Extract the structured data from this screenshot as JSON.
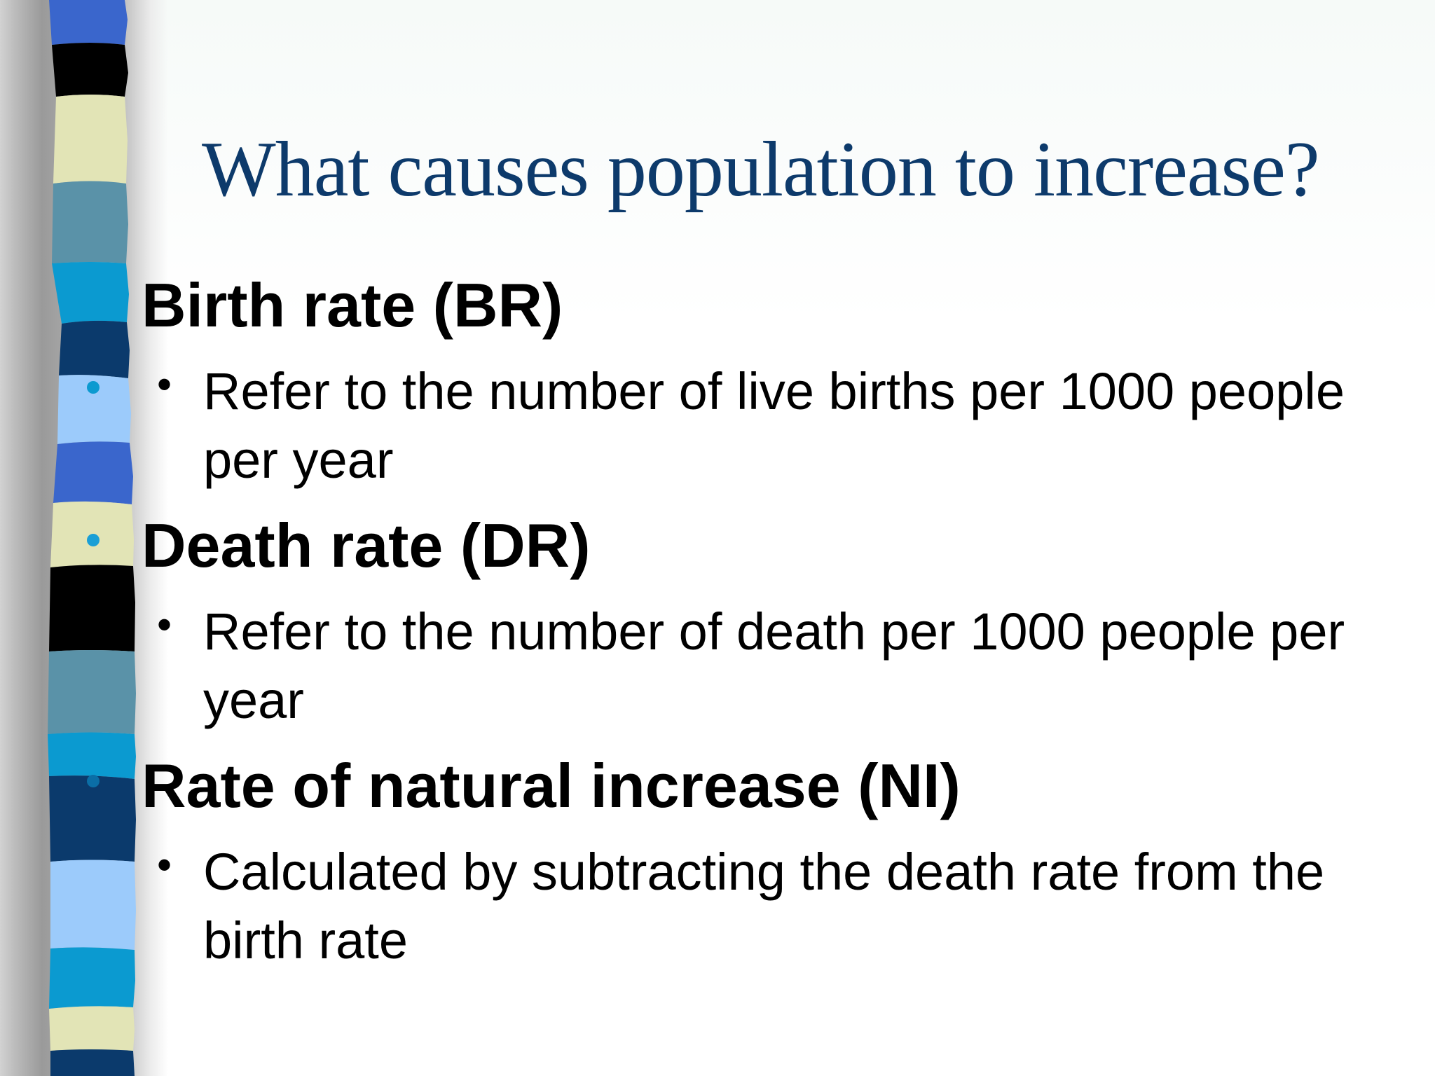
{
  "slide": {
    "title": "What causes population to increase?",
    "items": [
      {
        "heading": "Birth rate (BR)",
        "detail": "Refer to the number of live births per 1000 people per year"
      },
      {
        "heading": "Death rate (DR)",
        "detail": "Refer to the number of death per 1000 people per year"
      },
      {
        "heading": "Rate of natural increase (NI)",
        "detail": "Calculated by subtracting the death rate from the birth rate"
      }
    ],
    "sub_bullet_glyph": "•",
    "colors": {
      "title": "#0d3a6b",
      "body_text": "#000000",
      "level1_bullet": "#1a9fd6",
      "stripe_palette": [
        "#3a66cc",
        "#000000",
        "#e2e4b6",
        "#5a92a8",
        "#0b9ad0",
        "#0b3a6c",
        "#9ccbfb"
      ]
    }
  }
}
